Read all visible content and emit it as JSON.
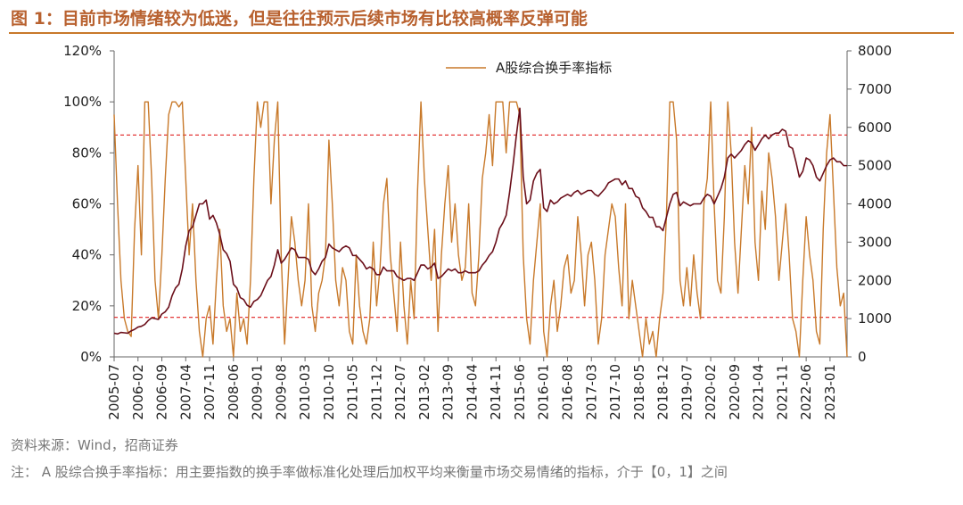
{
  "title": "图 1：目前市场情绪较为低迷，但是往往预示后续市场有比较高概率反弹可能",
  "source": "资料来源：Wind，招商证券",
  "note": "注： A 股综合换手率指标：用主要指数的换手率做标准化处理后加权平均来衡量市场交易情绪的指标，介于【0，1】之间",
  "chart_data": {
    "type": "line",
    "categories": [
      "2005-07",
      null,
      null,
      null,
      null,
      null,
      null,
      "2006-02",
      null,
      null,
      null,
      null,
      null,
      null,
      "2006-09",
      null,
      null,
      null,
      null,
      null,
      null,
      "2007-04",
      null,
      null,
      null,
      null,
      null,
      null,
      "2007-11",
      null,
      null,
      null,
      null,
      null,
      null,
      "2008-06",
      null,
      null,
      null,
      null,
      null,
      null,
      "2009-01",
      null,
      null,
      null,
      null,
      null,
      null,
      "2009-08",
      null,
      null,
      null,
      null,
      null,
      null,
      "2010-03",
      null,
      null,
      null,
      null,
      null,
      null,
      "2010-10",
      null,
      null,
      null,
      null,
      null,
      null,
      "2011-05",
      null,
      null,
      null,
      null,
      null,
      null,
      "2011-12",
      null,
      null,
      null,
      null,
      null,
      null,
      "2012-07",
      null,
      null,
      null,
      null,
      null,
      null,
      "2013-02",
      null,
      null,
      null,
      null,
      null,
      null,
      "2013-09",
      null,
      null,
      null,
      null,
      null,
      null,
      "2014-04",
      null,
      null,
      null,
      null,
      null,
      null,
      "2014-11",
      null,
      null,
      null,
      null,
      null,
      null,
      "2015-06",
      null,
      null,
      null,
      null,
      null,
      null,
      "2016-01",
      null,
      null,
      null,
      null,
      null,
      null,
      "2016-08",
      null,
      null,
      null,
      null,
      null,
      null,
      "2017-03",
      null,
      null,
      null,
      null,
      null,
      null,
      "2017-10",
      null,
      null,
      null,
      null,
      null,
      null,
      "2018-05",
      null,
      null,
      null,
      null,
      null,
      null,
      "2018-12",
      null,
      null,
      null,
      null,
      null,
      null,
      "2019-07",
      null,
      null,
      null,
      null,
      null,
      null,
      "2020-02",
      null,
      null,
      null,
      null,
      null,
      null,
      "2020-09",
      null,
      null,
      null,
      null,
      null,
      null,
      "2021-04",
      null,
      null,
      null,
      null,
      null,
      null,
      "2021-11",
      null,
      null,
      null,
      null,
      null,
      null,
      "2022-06",
      null,
      null,
      null,
      null,
      null,
      null,
      "2023-01",
      null,
      null,
      null,
      null,
      null
    ],
    "series": [
      {
        "name": "A股综合换手率指标",
        "color": "#c8792a",
        "values": [
          95,
          60,
          30,
          15,
          10,
          8,
          50,
          75,
          40,
          100,
          100,
          70,
          30,
          15,
          40,
          70,
          95,
          100,
          100,
          98,
          100,
          70,
          40,
          60,
          30,
          10,
          0,
          15,
          20,
          5,
          30,
          50,
          20,
          10,
          15,
          0,
          25,
          10,
          15,
          5,
          30,
          70,
          100,
          90,
          100,
          100,
          60,
          85,
          100,
          40,
          5,
          30,
          55,
          45,
          30,
          20,
          30,
          60,
          20,
          10,
          25,
          30,
          40,
          85,
          60,
          30,
          20,
          35,
          30,
          10,
          5,
          40,
          20,
          10,
          5,
          15,
          45,
          20,
          35,
          60,
          70,
          40,
          25,
          10,
          45,
          20,
          5,
          30,
          15,
          65,
          100,
          70,
          50,
          30,
          50,
          10,
          40,
          60,
          75,
          45,
          60,
          40,
          30,
          35,
          60,
          25,
          20,
          40,
          70,
          80,
          95,
          75,
          100,
          100,
          100,
          80,
          100,
          100,
          100,
          95,
          40,
          15,
          5,
          30,
          45,
          60,
          10,
          0,
          20,
          30,
          10,
          20,
          35,
          40,
          25,
          30,
          55,
          40,
          20,
          40,
          45,
          30,
          5,
          15,
          40,
          50,
          60,
          55,
          35,
          20,
          60,
          15,
          30,
          20,
          10,
          0,
          15,
          5,
          10,
          0,
          15,
          25,
          55,
          100,
          100,
          85,
          30,
          20,
          35,
          20,
          40,
          25,
          15,
          60,
          70,
          100,
          60,
          30,
          25,
          55,
          100,
          80,
          45,
          25,
          50,
          75,
          60,
          90,
          45,
          30,
          65,
          50,
          80,
          70,
          55,
          30,
          45,
          60,
          40,
          15,
          10,
          0,
          30,
          55,
          40,
          30,
          10,
          5,
          50,
          80,
          95,
          65,
          35,
          20,
          25,
          0
        ]
      },
      {
        "color": "#6b0f1a",
        "axis": "y2",
        "values": [
          620,
          600,
          640,
          630,
          620,
          680,
          720,
          780,
          800,
          850,
          950,
          1020,
          1000,
          980,
          1120,
          1180,
          1300,
          1600,
          1800,
          1900,
          2300,
          2900,
          3300,
          3400,
          3700,
          4000,
          4000,
          4100,
          3600,
          3700,
          3500,
          3200,
          2800,
          2700,
          2500,
          1900,
          1800,
          1550,
          1500,
          1350,
          1300,
          1450,
          1500,
          1600,
          1800,
          2000,
          2100,
          2400,
          2800,
          2450,
          2550,
          2700,
          2850,
          2800,
          2600,
          2600,
          2600,
          2550,
          2250,
          2150,
          2300,
          2500,
          2600,
          2950,
          2850,
          2800,
          2750,
          2850,
          2900,
          2850,
          2650,
          2650,
          2550,
          2450,
          2300,
          2350,
          2300,
          2150,
          2150,
          2350,
          2250,
          2250,
          2250,
          2100,
          2050,
          2000,
          2050,
          2050,
          2000,
          2200,
          2400,
          2400,
          2300,
          2350,
          2450,
          2050,
          2100,
          2200,
          2300,
          2250,
          2300,
          2200,
          2200,
          2250,
          2200,
          2200,
          2200,
          2250,
          2400,
          2500,
          2650,
          2750,
          3000,
          3350,
          3500,
          3700,
          4300,
          5000,
          5800,
          6500,
          4700,
          4000,
          4100,
          4600,
          4800,
          4900,
          3900,
          3800,
          4100,
          4000,
          4050,
          4150,
          4200,
          4250,
          4200,
          4300,
          4350,
          4250,
          4300,
          4350,
          4350,
          4250,
          4200,
          4300,
          4400,
          4550,
          4600,
          4650,
          4650,
          4500,
          4600,
          4400,
          4400,
          4200,
          4150,
          3900,
          3800,
          3650,
          3650,
          3400,
          3400,
          3300,
          3650,
          4000,
          4250,
          4300,
          3950,
          4050,
          4000,
          3950,
          4000,
          4000,
          4000,
          4150,
          4250,
          4200,
          4000,
          4200,
          4400,
          4700,
          5200,
          5300,
          5200,
          5300,
          5400,
          5550,
          5650,
          5600,
          5400,
          5550,
          5700,
          5800,
          5700,
          5800,
          5850,
          5850,
          5950,
          5900,
          5500,
          5450,
          5100,
          4700,
          4850,
          5200,
          5150,
          5000,
          4700,
          4600,
          4800,
          5000,
          5150,
          5200,
          5100,
          5100,
          5000,
          5000
        ]
      }
    ],
    "ylim": [
      0,
      120
    ],
    "yticks": [
      {
        "value": 0,
        "label": "0%"
      },
      {
        "value": 20,
        "label": "20%"
      },
      {
        "value": 40,
        "label": "40%"
      },
      {
        "value": 60,
        "label": "60%"
      },
      {
        "value": 80,
        "label": "80%"
      },
      {
        "value": 100,
        "label": "100%"
      },
      {
        "value": 120,
        "label": "120%"
      }
    ],
    "y2lim": [
      0,
      8000
    ],
    "y2ticks": [
      0,
      1000,
      2000,
      3000,
      4000,
      5000,
      6000,
      7000,
      8000
    ],
    "reference_lines": {
      "y": [
        87,
        15.5
      ],
      "color": "#e02020"
    },
    "grid": false,
    "legend": "top"
  }
}
